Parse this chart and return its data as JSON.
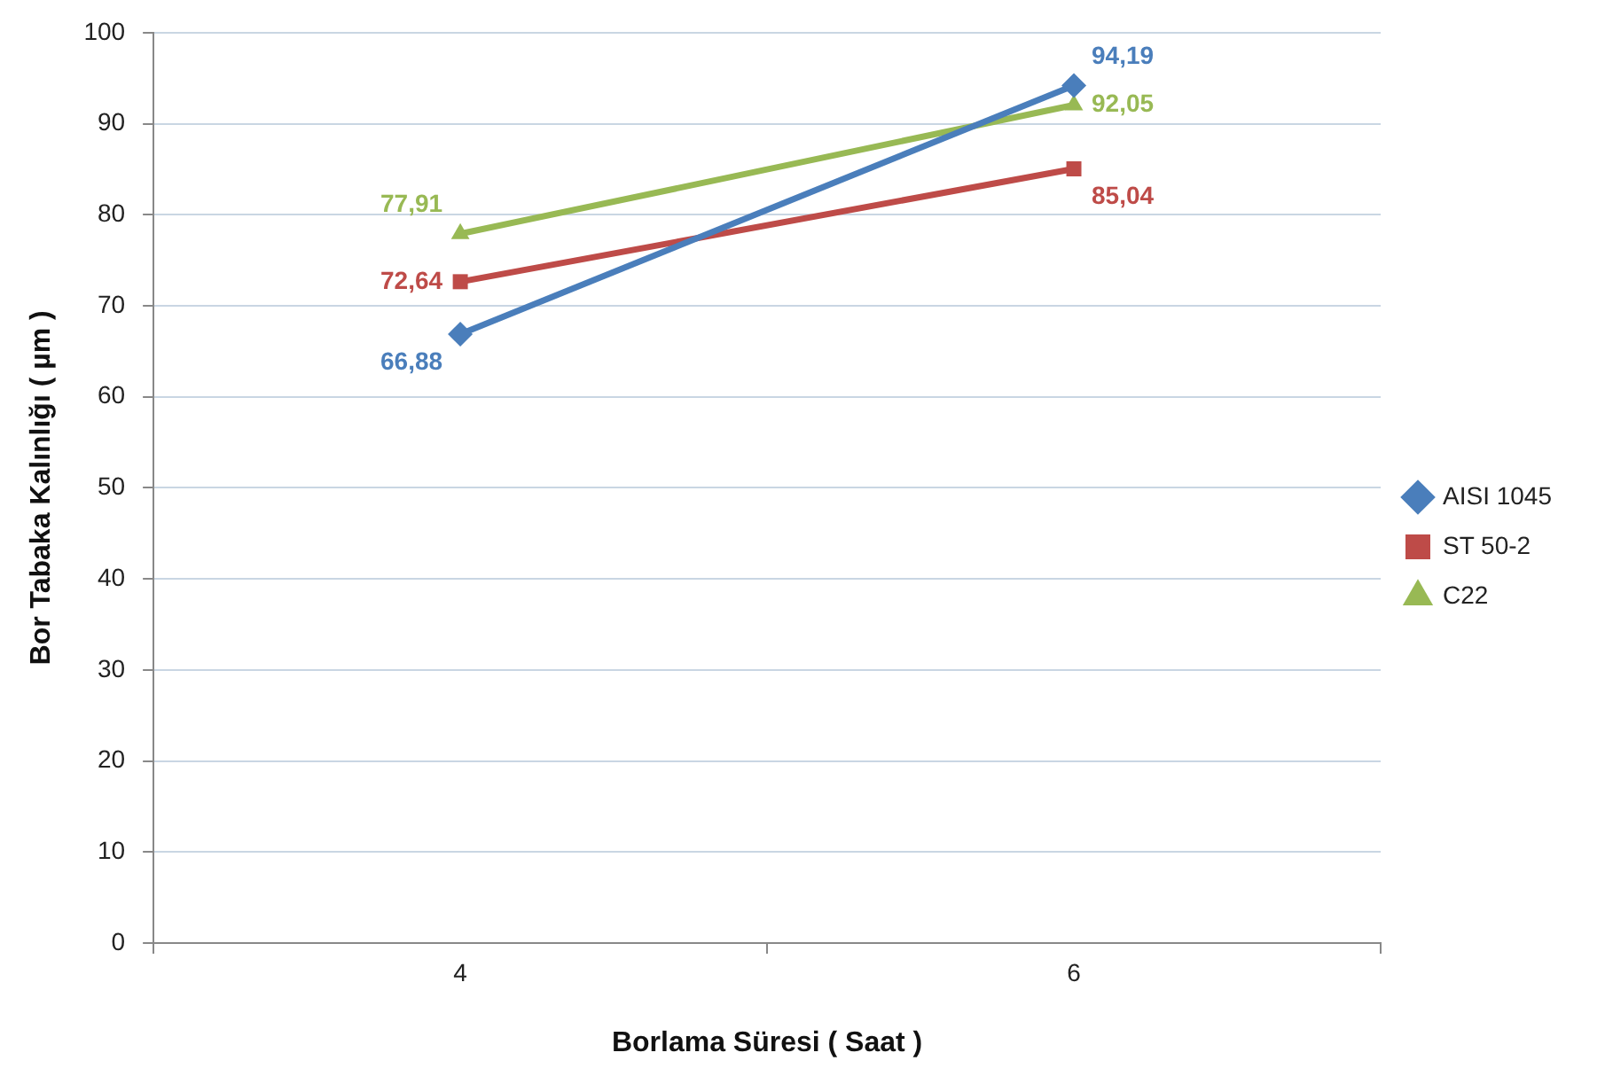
{
  "chart_data": {
    "type": "line",
    "xlabel": "Borlama Süresi ( Saat )",
    "ylabel": "Bor Tabaka Kalınlığı ( µm )",
    "categories": [
      "4",
      "6"
    ],
    "ylim": [
      0,
      100
    ],
    "yticks": [
      0,
      10,
      20,
      30,
      40,
      50,
      60,
      70,
      80,
      90,
      100
    ],
    "grid": "y",
    "legend": "right",
    "line_style": "solid",
    "series": [
      {
        "name": "AISI 1045",
        "color": "#4a7ebb",
        "marker": "diamond",
        "values": [
          66.88,
          94.19
        ],
        "value_labels": [
          "66,88",
          "94,19"
        ]
      },
      {
        "name": "ST 50-2",
        "color": "#be4b48",
        "marker": "square",
        "values": [
          72.64,
          85.04
        ],
        "value_labels": [
          "72,64",
          "85,04"
        ]
      },
      {
        "name": "C22",
        "color": "#98b954",
        "marker": "triangle",
        "values": [
          77.91,
          92.05
        ],
        "value_labels": [
          "77,91",
          "92,05"
        ]
      }
    ]
  }
}
